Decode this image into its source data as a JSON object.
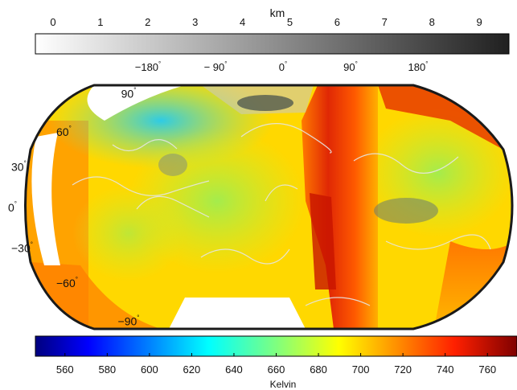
{
  "elevation_colorbar": {
    "label": "km",
    "ticks": [
      "0",
      "1",
      "2",
      "3",
      "4",
      "5",
      "6",
      "7",
      "8",
      "9"
    ],
    "range": [
      0,
      10
    ],
    "colormap": [
      "#ffffff",
      "#202020"
    ]
  },
  "longitude_labels": [
    {
      "text": "−180",
      "deg": "°",
      "value": -180
    },
    {
      "text": "− 90",
      "deg": "°",
      "value": -90
    },
    {
      "text": "0",
      "deg": "°",
      "value": 0
    },
    {
      "text": "90",
      "deg": "°",
      "value": 90
    },
    {
      "text": "180",
      "deg": "°",
      "value": 180
    }
  ],
  "latitude_labels": [
    {
      "text": "90",
      "deg": "°",
      "value": 90
    },
    {
      "text": "60",
      "deg": "°",
      "value": 60
    },
    {
      "text": "30",
      "deg": "°",
      "value": 30
    },
    {
      "text": "0",
      "deg": "°",
      "value": 0
    },
    {
      "text": "−30",
      "deg": "°",
      "value": -30
    },
    {
      "text": "−60",
      "deg": "°",
      "value": -60
    },
    {
      "text": "−90",
      "deg": "°",
      "value": -90
    }
  ],
  "map": {
    "projection": "Robinson",
    "colors": {
      "background": "#ffd800",
      "cool": "#2ecbe6",
      "green": "#9bea4a",
      "hot": "#d81e05",
      "orange": "#ff8a00",
      "contour": "#d9d9d9",
      "dark_contour": "#4f5a5a"
    }
  },
  "temperature_colorbar": {
    "label": "Kelvin",
    "ticks": [
      "560",
      "580",
      "600",
      "620",
      "640",
      "660",
      "680",
      "700",
      "720",
      "740",
      "760"
    ],
    "range": [
      546,
      774
    ],
    "colormap": [
      "#00007f",
      "#0000ff",
      "#007fff",
      "#00ffff",
      "#7fff7f",
      "#ffff00",
      "#ff7f00",
      "#ff0000",
      "#7f0000"
    ]
  }
}
